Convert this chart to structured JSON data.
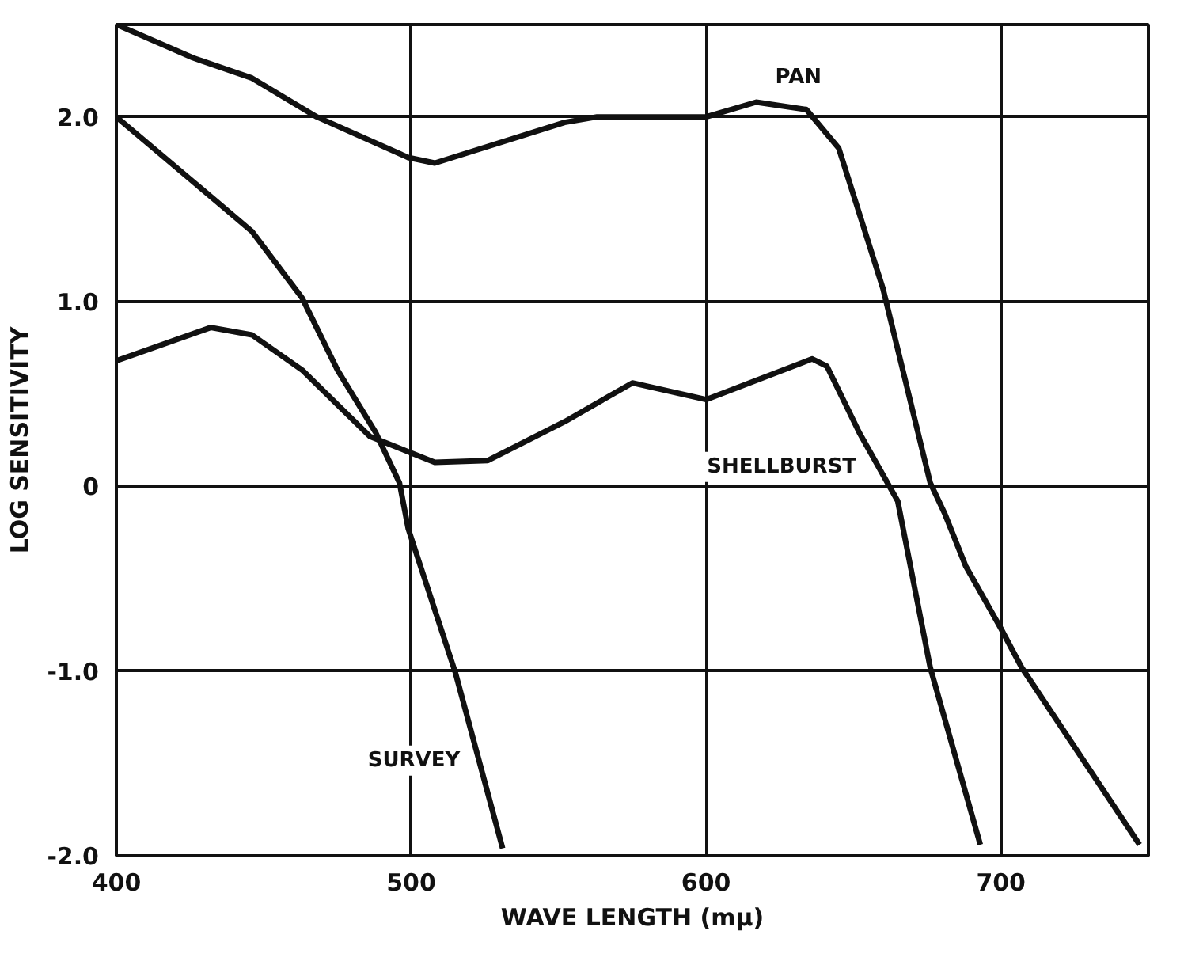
{
  "chart_data": {
    "type": "line",
    "xlabel": "WAVE LENGTH (mμ)",
    "ylabel": "LOG SENSITIVITY",
    "xlim": [
      400,
      750
    ],
    "ylim": [
      -2,
      2.5
    ],
    "xticks": [
      400,
      500,
      600,
      700
    ],
    "yticks": [
      {
        "value": 2,
        "label": "2.0"
      },
      {
        "value": 1,
        "label": "1.0"
      },
      0,
      {
        "value": -1,
        "label": "-1.0"
      },
      {
        "value": -2,
        "label": "-2.0"
      }
    ],
    "grid": true,
    "marker": "none",
    "line_style": "solid",
    "series": [
      {
        "name": "PAN",
        "color": "#111111",
        "x": [
          400,
          426,
          446,
          468,
          499,
          508,
          552,
          563,
          600,
          617,
          634,
          645,
          660,
          676,
          681,
          688,
          700,
          707,
          747
        ],
        "values": [
          2.5,
          2.32,
          2.21,
          2.0,
          1.78,
          1.75,
          1.97,
          2.0,
          2.0,
          2.08,
          2.04,
          1.83,
          1.07,
          0.02,
          -0.15,
          -0.43,
          -0.77,
          -0.98,
          -1.94
        ]
      },
      {
        "name": "SURVEY",
        "color": "#111111",
        "x": [
          400,
          426,
          446,
          463,
          475,
          488,
          496,
          499,
          515,
          531
        ],
        "values": [
          2.0,
          1.65,
          1.38,
          1.02,
          0.63,
          0.29,
          0.02,
          -0.23,
          -1.01,
          -1.96
        ]
      },
      {
        "name": "SHELLBURST",
        "color": "#111111",
        "x": [
          400,
          432,
          446,
          463,
          486,
          508,
          526,
          552,
          575,
          600,
          636,
          641,
          652,
          665,
          676,
          693
        ],
        "values": [
          0.68,
          0.86,
          0.82,
          0.63,
          0.27,
          0.13,
          0.14,
          0.35,
          0.56,
          0.47,
          0.69,
          0.65,
          0.29,
          -0.08,
          -0.98,
          -1.94
        ]
      }
    ]
  }
}
